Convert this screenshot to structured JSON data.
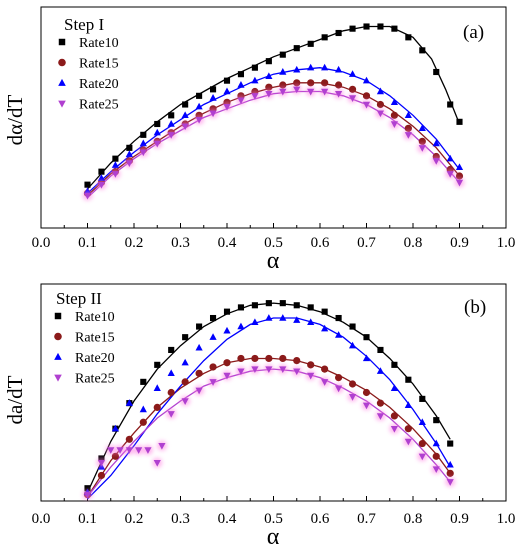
{
  "chart_data": [
    {
      "type": "scatter",
      "panel_label": "(a)",
      "step_title": "Step I",
      "xlabel": "α",
      "ylabel": "dα/dT",
      "xlim": [
        0.0,
        1.0
      ],
      "x_ticks": [
        "0.0",
        "0.1",
        "0.2",
        "0.3",
        "0.4",
        "0.5",
        "0.6",
        "0.7",
        "0.8",
        "0.9",
        "1.0"
      ],
      "legend_position": "top-left",
      "grid": false,
      "fit_lines": true,
      "series": [
        {
          "name": "Rate10",
          "marker": "square",
          "color": "#000000",
          "x": [
            0.1,
            0.13,
            0.16,
            0.19,
            0.22,
            0.25,
            0.28,
            0.31,
            0.34,
            0.37,
            0.4,
            0.43,
            0.46,
            0.49,
            0.52,
            0.55,
            0.58,
            0.61,
            0.64,
            0.67,
            0.7,
            0.73,
            0.76,
            0.79,
            0.82,
            0.85,
            0.88,
            0.9
          ],
          "y": [
            0.2,
            0.26,
            0.32,
            0.37,
            0.43,
            0.48,
            0.52,
            0.57,
            0.61,
            0.64,
            0.68,
            0.71,
            0.74,
            0.77,
            0.8,
            0.83,
            0.85,
            0.88,
            0.9,
            0.92,
            0.93,
            0.93,
            0.92,
            0.88,
            0.82,
            0.72,
            0.57,
            0.49
          ],
          "fit_x": [
            0.1,
            0.15,
            0.2,
            0.25,
            0.3,
            0.35,
            0.4,
            0.45,
            0.5,
            0.55,
            0.6,
            0.65,
            0.7,
            0.75,
            0.8,
            0.84,
            0.87,
            0.9
          ],
          "fit_y": [
            0.18,
            0.3,
            0.4,
            0.49,
            0.57,
            0.63,
            0.69,
            0.74,
            0.79,
            0.83,
            0.87,
            0.91,
            0.93,
            0.93,
            0.88,
            0.78,
            0.64,
            0.48
          ]
        },
        {
          "name": "Rate15",
          "marker": "circle",
          "color": "#8b1a1a",
          "x": [
            0.1,
            0.13,
            0.16,
            0.19,
            0.22,
            0.25,
            0.28,
            0.31,
            0.34,
            0.37,
            0.4,
            0.43,
            0.46,
            0.49,
            0.52,
            0.55,
            0.58,
            0.61,
            0.64,
            0.67,
            0.7,
            0.73,
            0.76,
            0.79,
            0.82,
            0.85,
            0.88,
            0.9
          ],
          "y": [
            0.16,
            0.21,
            0.26,
            0.31,
            0.36,
            0.4,
            0.44,
            0.48,
            0.52,
            0.55,
            0.58,
            0.61,
            0.63,
            0.65,
            0.66,
            0.67,
            0.67,
            0.67,
            0.66,
            0.64,
            0.61,
            0.57,
            0.52,
            0.46,
            0.4,
            0.33,
            0.27,
            0.24
          ],
          "fit_x": [
            0.1,
            0.15,
            0.2,
            0.25,
            0.3,
            0.35,
            0.4,
            0.45,
            0.5,
            0.55,
            0.6,
            0.65,
            0.7,
            0.75,
            0.8,
            0.85,
            0.9
          ],
          "fit_y": [
            0.15,
            0.25,
            0.33,
            0.4,
            0.47,
            0.53,
            0.58,
            0.62,
            0.65,
            0.67,
            0.67,
            0.65,
            0.61,
            0.55,
            0.47,
            0.37,
            0.24
          ]
        },
        {
          "name": "Rate20",
          "marker": "triangle-up",
          "color": "#0000ff",
          "x": [
            0.1,
            0.13,
            0.16,
            0.19,
            0.22,
            0.25,
            0.28,
            0.31,
            0.34,
            0.37,
            0.4,
            0.43,
            0.46,
            0.49,
            0.52,
            0.55,
            0.58,
            0.61,
            0.64,
            0.67,
            0.7,
            0.73,
            0.76,
            0.79,
            0.82,
            0.85,
            0.88,
            0.9
          ],
          "y": [
            0.17,
            0.23,
            0.29,
            0.34,
            0.39,
            0.44,
            0.48,
            0.52,
            0.56,
            0.6,
            0.63,
            0.66,
            0.68,
            0.7,
            0.72,
            0.73,
            0.74,
            0.74,
            0.73,
            0.71,
            0.68,
            0.63,
            0.58,
            0.52,
            0.46,
            0.39,
            0.32,
            0.28
          ],
          "fit_x": [
            0.1,
            0.15,
            0.2,
            0.25,
            0.3,
            0.35,
            0.4,
            0.45,
            0.5,
            0.55,
            0.6,
            0.65,
            0.7,
            0.75,
            0.8,
            0.85,
            0.9
          ],
          "fit_y": [
            0.16,
            0.26,
            0.35,
            0.43,
            0.5,
            0.57,
            0.62,
            0.67,
            0.71,
            0.73,
            0.74,
            0.72,
            0.68,
            0.61,
            0.52,
            0.41,
            0.27
          ]
        },
        {
          "name": "Rate25",
          "marker": "triangle-down",
          "color": "#b040d0",
          "x": [
            0.1,
            0.13,
            0.16,
            0.19,
            0.22,
            0.25,
            0.28,
            0.31,
            0.34,
            0.37,
            0.4,
            0.43,
            0.46,
            0.49,
            0.52,
            0.55,
            0.58,
            0.61,
            0.64,
            0.67,
            0.7,
            0.73,
            0.76,
            0.79,
            0.82,
            0.85,
            0.88,
            0.9
          ],
          "y": [
            0.15,
            0.2,
            0.25,
            0.3,
            0.35,
            0.39,
            0.43,
            0.47,
            0.5,
            0.53,
            0.56,
            0.59,
            0.61,
            0.62,
            0.63,
            0.64,
            0.63,
            0.63,
            0.62,
            0.6,
            0.57,
            0.53,
            0.48,
            0.43,
            0.37,
            0.31,
            0.25,
            0.21
          ],
          "fit_x": [
            0.1,
            0.15,
            0.2,
            0.25,
            0.3,
            0.35,
            0.4,
            0.45,
            0.5,
            0.55,
            0.6,
            0.65,
            0.7,
            0.75,
            0.8,
            0.85,
            0.9
          ],
          "fit_y": [
            0.14,
            0.24,
            0.32,
            0.39,
            0.45,
            0.51,
            0.55,
            0.59,
            0.62,
            0.63,
            0.63,
            0.61,
            0.57,
            0.51,
            0.43,
            0.33,
            0.21
          ]
        }
      ]
    },
    {
      "type": "scatter",
      "panel_label": "(b)",
      "step_title": "Step II",
      "xlabel": "α",
      "ylabel": "da/dT",
      "xlim": [
        0.0,
        1.0
      ],
      "x_ticks": [
        "0.0",
        "0.1",
        "0.2",
        "0.3",
        "0.4",
        "0.5",
        "0.6",
        "0.7",
        "0.8",
        "0.9",
        "1.0"
      ],
      "legend_position": "top-left",
      "grid": false,
      "fit_lines": true,
      "series": [
        {
          "name": "Rate10",
          "marker": "square",
          "color": "#000000",
          "x": [
            0.1,
            0.13,
            0.16,
            0.19,
            0.22,
            0.25,
            0.28,
            0.31,
            0.34,
            0.37,
            0.4,
            0.43,
            0.46,
            0.49,
            0.52,
            0.55,
            0.58,
            0.61,
            0.64,
            0.67,
            0.7,
            0.73,
            0.76,
            0.79,
            0.82,
            0.85,
            0.88
          ],
          "y": [
            0.06,
            0.2,
            0.34,
            0.46,
            0.56,
            0.64,
            0.71,
            0.77,
            0.82,
            0.86,
            0.89,
            0.91,
            0.92,
            0.93,
            0.93,
            0.92,
            0.91,
            0.89,
            0.86,
            0.82,
            0.77,
            0.71,
            0.64,
            0.57,
            0.48,
            0.38,
            0.27
          ],
          "fit_x": [
            0.1,
            0.15,
            0.2,
            0.25,
            0.3,
            0.35,
            0.4,
            0.45,
            0.5,
            0.55,
            0.6,
            0.65,
            0.7,
            0.75,
            0.8,
            0.85,
            0.88
          ],
          "fit_y": [
            0.04,
            0.28,
            0.47,
            0.62,
            0.73,
            0.82,
            0.88,
            0.92,
            0.93,
            0.92,
            0.89,
            0.84,
            0.77,
            0.67,
            0.55,
            0.4,
            0.29
          ]
        },
        {
          "name": "Rate15",
          "marker": "circle",
          "color": "#8b1a1a",
          "x": [
            0.1,
            0.13,
            0.16,
            0.19,
            0.22,
            0.25,
            0.28,
            0.31,
            0.34,
            0.37,
            0.4,
            0.43,
            0.46,
            0.49,
            0.52,
            0.55,
            0.58,
            0.61,
            0.64,
            0.67,
            0.7,
            0.73,
            0.76,
            0.79,
            0.82,
            0.85,
            0.88
          ],
          "y": [
            0.03,
            0.12,
            0.21,
            0.29,
            0.37,
            0.44,
            0.51,
            0.56,
            0.6,
            0.63,
            0.65,
            0.67,
            0.67,
            0.67,
            0.67,
            0.66,
            0.64,
            0.62,
            0.58,
            0.55,
            0.51,
            0.46,
            0.4,
            0.34,
            0.27,
            0.21,
            0.13
          ],
          "fit_x": [
            0.1,
            0.15,
            0.2,
            0.25,
            0.3,
            0.35,
            0.4,
            0.45,
            0.5,
            0.55,
            0.6,
            0.65,
            0.7,
            0.75,
            0.8,
            0.85,
            0.88
          ],
          "fit_y": [
            0.02,
            0.19,
            0.32,
            0.44,
            0.53,
            0.6,
            0.65,
            0.67,
            0.67,
            0.66,
            0.63,
            0.58,
            0.52,
            0.44,
            0.34,
            0.22,
            0.13
          ]
        },
        {
          "name": "Rate20",
          "marker": "triangle-up",
          "color": "#0000ff",
          "x": [
            0.1,
            0.13,
            0.16,
            0.19,
            0.22,
            0.25,
            0.28,
            0.31,
            0.34,
            0.37,
            0.4,
            0.43,
            0.46,
            0.49,
            0.52,
            0.55,
            0.58,
            0.61,
            0.64,
            0.67,
            0.7,
            0.73,
            0.76,
            0.79,
            0.82,
            0.85,
            0.88
          ],
          "y": [
            0.04,
            0.16,
            0.34,
            0.46,
            0.43,
            0.53,
            0.6,
            0.65,
            0.72,
            0.77,
            0.8,
            0.82,
            0.84,
            0.86,
            0.86,
            0.85,
            0.84,
            0.81,
            0.78,
            0.73,
            0.67,
            0.61,
            0.53,
            0.45,
            0.37,
            0.27,
            0.17
          ],
          "fit_x": [
            0.1,
            0.15,
            0.2,
            0.25,
            0.3,
            0.35,
            0.4,
            0.45,
            0.5,
            0.55,
            0.6,
            0.65,
            0.7,
            0.75,
            0.8,
            0.85,
            0.88
          ],
          "fit_y": [
            0.01,
            0.12,
            0.26,
            0.41,
            0.54,
            0.66,
            0.76,
            0.83,
            0.86,
            0.86,
            0.83,
            0.77,
            0.68,
            0.57,
            0.43,
            0.27,
            0.16
          ]
        },
        {
          "name": "Rate25",
          "marker": "triangle-down",
          "color": "#b040d0",
          "x": [
            0.1,
            0.13,
            0.15,
            0.17,
            0.19,
            0.21,
            0.23,
            0.25,
            0.26,
            0.28,
            0.31,
            0.34,
            0.37,
            0.4,
            0.43,
            0.46,
            0.49,
            0.52,
            0.55,
            0.58,
            0.61,
            0.64,
            0.67,
            0.7,
            0.73,
            0.76,
            0.79,
            0.82,
            0.85,
            0.88
          ],
          "y": [
            0.03,
            0.18,
            0.24,
            0.24,
            0.24,
            0.24,
            0.24,
            0.18,
            0.26,
            0.41,
            0.47,
            0.52,
            0.56,
            0.59,
            0.61,
            0.62,
            0.62,
            0.62,
            0.61,
            0.59,
            0.56,
            0.53,
            0.49,
            0.45,
            0.4,
            0.34,
            0.28,
            0.21,
            0.15,
            0.09
          ],
          "fit_x": [
            0.1,
            0.15,
            0.2,
            0.25,
            0.3,
            0.35,
            0.4,
            0.45,
            0.5,
            0.55,
            0.6,
            0.65,
            0.7,
            0.75,
            0.8,
            0.85,
            0.88
          ],
          "fit_y": [
            0.02,
            0.16,
            0.28,
            0.39,
            0.47,
            0.54,
            0.58,
            0.61,
            0.62,
            0.61,
            0.58,
            0.53,
            0.47,
            0.39,
            0.29,
            0.17,
            0.09
          ]
        }
      ]
    }
  ]
}
